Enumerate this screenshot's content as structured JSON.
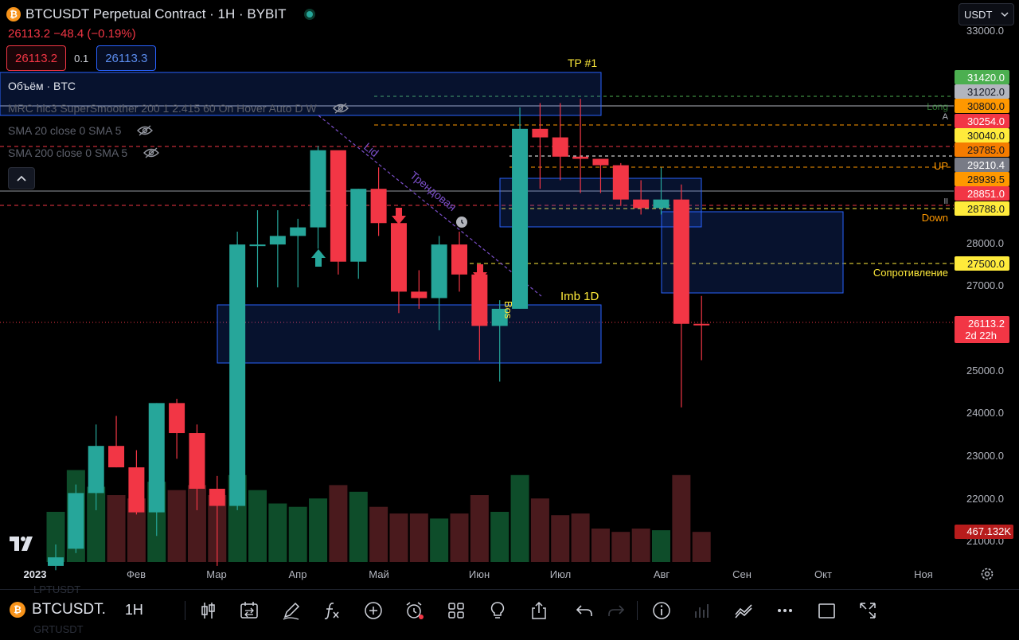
{
  "header": {
    "title": "BTCUSDT Perpetual Contract · 1H · BYBIT",
    "coin_glyph": "₿",
    "price_change": "26113.2  −48.4 (−0.19%)",
    "sell_price": "26113.2",
    "spread": "0.1",
    "buy_price": "26113.3"
  },
  "indicators": [
    {
      "label": "Объём · BTC"
    },
    {
      "label": "MRC hlc3 SuperSmoother 200 1 2.415 60 On Hover Auto D W"
    },
    {
      "label": "SMA 20 close 0 SMA 5"
    },
    {
      "label": "SMA 200 close 0 SMA 5"
    }
  ],
  "currency_select": {
    "value": "USDT"
  },
  "annotations": {
    "tp": "TP #1",
    "imb": "Imb 1D",
    "lid": "Lid",
    "trend": "Трендовая",
    "bos": "Bos",
    "long": "Long",
    "a": "A",
    "up": "UP",
    "down": "Down",
    "ii": "II",
    "resistance": "Сопротивление"
  },
  "price_axis": {
    "ticks": [
      "33000.0",
      "28000.0",
      "27000.0",
      "25000.0",
      "24000.0",
      "23000.0",
      "22000.0",
      "21000.0"
    ],
    "labels": [
      {
        "text": "31420.0",
        "bg": "#4caf50",
        "fg": "#ffffff"
      },
      {
        "text": "31202.0",
        "bg": "#b2b5be",
        "fg": "#131722"
      },
      {
        "text": "30800.0",
        "bg": "#ff9800",
        "fg": "#131722"
      },
      {
        "text": "30254.0",
        "bg": "#f23645",
        "fg": "#ffffff"
      },
      {
        "text": "30040.0",
        "bg": "#ffeb3b",
        "fg": "#131722"
      },
      {
        "text": "29785.0",
        "bg": "#f57c00",
        "fg": "#131722"
      },
      {
        "text": "29210.4",
        "bg": "#787b86",
        "fg": "#ffffff"
      },
      {
        "text": "28939.5",
        "bg": "#ff9800",
        "fg": "#131722"
      },
      {
        "text": "28851.0",
        "bg": "#f23645",
        "fg": "#ffffff"
      },
      {
        "text": "28788.0",
        "bg": "#ffeb3b",
        "fg": "#131722"
      },
      {
        "text": "27500.0",
        "bg": "#ffeb3b",
        "fg": "#131722"
      }
    ],
    "current": {
      "price": "26113.2",
      "countdown": "2d 22h",
      "bg": "#f23645"
    },
    "volume": {
      "text": "467.132K",
      "bg": "#b71c1c"
    }
  },
  "time_axis": [
    "2023",
    "Фев",
    "Мар",
    "Апр",
    "Май",
    "Июн",
    "Июл",
    "Авг",
    "Сен",
    "Окт",
    "Ноя"
  ],
  "chart_data": {
    "type": "candlestick",
    "bull_color": "#26a69a",
    "bear_color": "#f23645",
    "ohlc": [
      [
        20500,
        21000,
        20400,
        20700
      ],
      [
        20900,
        22400,
        20800,
        22200
      ],
      [
        22200,
        23800,
        21800,
        23300
      ],
      [
        23300,
        24000,
        22800,
        22800
      ],
      [
        22800,
        23200,
        21700,
        21750
      ],
      [
        21750,
        24300,
        21200,
        24300
      ],
      [
        24300,
        24400,
        23000,
        23600
      ],
      [
        23600,
        23800,
        21800,
        22300
      ],
      [
        22300,
        22600,
        20500,
        21900
      ],
      [
        21900,
        28300,
        21800,
        28000
      ],
      [
        28000,
        28800,
        27000,
        28000
      ],
      [
        28000,
        28800,
        27000,
        28200
      ],
      [
        28200,
        28600,
        27000,
        28400
      ],
      [
        28400,
        30300,
        27900,
        30200
      ],
      [
        30200,
        30100,
        27300,
        27600
      ],
      [
        27600,
        29300,
        27200,
        29300
      ],
      [
        29300,
        29800,
        28200,
        28500
      ],
      [
        28500,
        28500,
        26400,
        26900
      ],
      [
        26900,
        27400,
        26500,
        26750
      ],
      [
        26750,
        28200,
        26000,
        28000
      ],
      [
        28000,
        28300,
        26900,
        27300
      ],
      [
        27300,
        27300,
        25300,
        26100
      ],
      [
        26100,
        26700,
        24800,
        26500
      ],
      [
        26500,
        31200,
        26500,
        30700
      ],
      [
        30700,
        31300,
        29300,
        30500
      ],
      [
        30500,
        31300,
        29500,
        30050
      ],
      [
        30050,
        31400,
        29200,
        30000
      ],
      [
        30000,
        30000,
        29200,
        29850
      ],
      [
        29850,
        29900,
        28900,
        29050
      ],
      [
        29050,
        29500,
        28700,
        28850
      ],
      [
        28850,
        29800,
        28700,
        29050
      ],
      [
        29050,
        29400,
        24200,
        26150
      ],
      [
        26150,
        26800,
        25300,
        26113
      ]
    ],
    "volume": [
      0.3,
      0.55,
      0.45,
      0.4,
      0.38,
      0.48,
      0.43,
      0.46,
      0.4,
      0.52,
      0.43,
      0.35,
      0.33,
      0.38,
      0.46,
      0.42,
      0.33,
      0.29,
      0.29,
      0.26,
      0.29,
      0.4,
      0.3,
      0.52,
      0.38,
      0.28,
      0.29,
      0.2,
      0.18,
      0.2,
      0.19,
      0.52,
      0.18
    ],
    "ylim": [
      20600,
      33300
    ]
  }
}
